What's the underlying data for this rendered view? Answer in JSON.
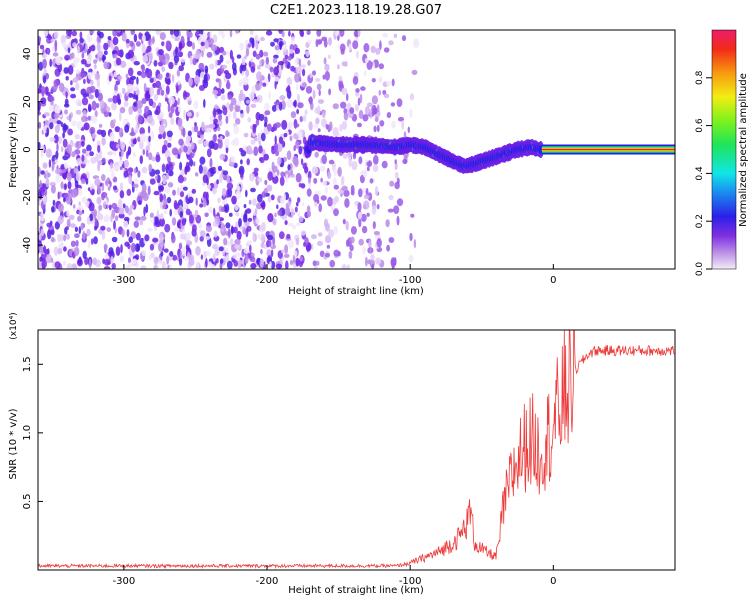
{
  "title": "C2E1.2023.118.19.28.G07",
  "chart_data": [
    {
      "type": "heatmap",
      "xlabel": "Height of straight line (km)",
      "ylabel": "Frequency (Hz)",
      "xlim": [
        -360,
        85
      ],
      "ylim": [
        -50,
        50
      ],
      "xticks": [
        -300,
        -200,
        -100,
        0
      ],
      "yticks": [
        -40,
        -20,
        0,
        20,
        40
      ],
      "colorbar": {
        "label": "Normalized spectral amplitude",
        "range": [
          0,
          1
        ],
        "ticks": [
          "0.0",
          "0.2",
          "0.4",
          "0.6",
          "0.8"
        ],
        "colormap": "rainbow"
      },
      "ridge": {
        "x": [
          -170,
          -150,
          -130,
          -110,
          -100,
          -90,
          -80,
          -70,
          -62,
          -55,
          -45,
          -35,
          -25,
          -15,
          -10,
          0,
          85
        ],
        "y": [
          3,
          2,
          2,
          1,
          2,
          1,
          -2,
          -5,
          -7,
          -6,
          -4,
          -2,
          0,
          1,
          0,
          0,
          0
        ]
      }
    },
    {
      "type": "line",
      "xlabel": "Height of straight line (km)",
      "ylabel": "SNR (10 * v/v)",
      "y_multiplier": "(x10⁴)",
      "xlim": [
        -360,
        85
      ],
      "ylim": [
        0,
        1.75
      ],
      "xticks": [
        -300,
        -200,
        -100,
        0
      ],
      "yticks": [
        "0.5",
        "1.0",
        "1.5"
      ],
      "series": [
        {
          "color": "#ee3a3a",
          "x": [
            -360,
            -300,
            -250,
            -200,
            -150,
            -110,
            -100,
            -90,
            -80,
            -70,
            -65,
            -60,
            -58,
            -55,
            -50,
            -45,
            -40,
            -38,
            -35,
            -30,
            -25,
            -20,
            -15,
            -10,
            -5,
            0,
            5,
            10,
            15,
            20,
            25,
            30,
            40,
            50,
            60,
            70,
            85
          ],
          "y": [
            0.03,
            0.03,
            0.03,
            0.03,
            0.03,
            0.03,
            0.05,
            0.09,
            0.13,
            0.2,
            0.25,
            0.35,
            0.45,
            0.2,
            0.15,
            0.12,
            0.1,
            0.2,
            0.45,
            0.65,
            0.8,
            0.9,
            0.95,
            0.85,
            0.95,
            1.05,
            1.2,
            1.35,
            1.45,
            1.52,
            1.58,
            1.6,
            1.6,
            1.6,
            1.6,
            1.6,
            1.6
          ]
        }
      ]
    }
  ]
}
